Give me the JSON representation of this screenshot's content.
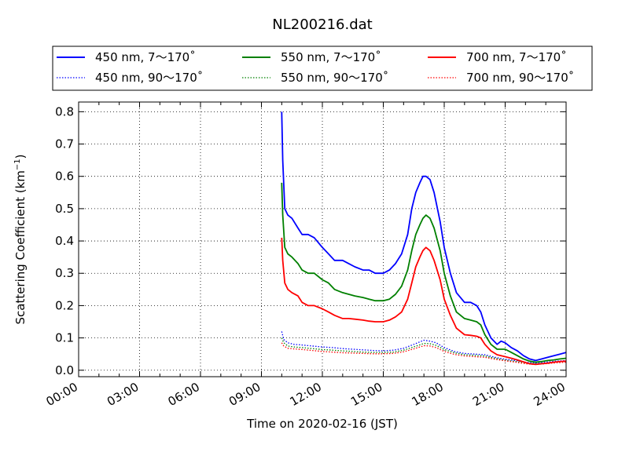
{
  "chart_data": {
    "type": "line",
    "title": "NL200216.dat",
    "xlabel": "Time on 2020-02-16 (JST)",
    "ylabel_main": "Scattering Coefficient (km",
    "ylabel_sup": "−1",
    "ylabel_close": ")",
    "xlim": [
      0,
      24
    ],
    "ylim": [
      -0.02,
      0.83
    ],
    "x_unit": "hours (JST)",
    "grid": true,
    "legend_position": "top (above plot)",
    "x_ticks": [
      {
        "value": 0,
        "label": "00:00"
      },
      {
        "value": 3,
        "label": "03:00"
      },
      {
        "value": 6,
        "label": "06:00"
      },
      {
        "value": 9,
        "label": "09:00"
      },
      {
        "value": 12,
        "label": "12:00"
      },
      {
        "value": 15,
        "label": "15:00"
      },
      {
        "value": 18,
        "label": "18:00"
      },
      {
        "value": 21,
        "label": "21:00"
      },
      {
        "value": 24,
        "label": "24:00"
      }
    ],
    "y_ticks": [
      {
        "value": 0.0,
        "label": "0.0"
      },
      {
        "value": 0.1,
        "label": "0.1"
      },
      {
        "value": 0.2,
        "label": "0.2"
      },
      {
        "value": 0.3,
        "label": "0.3"
      },
      {
        "value": 0.4,
        "label": "0.4"
      },
      {
        "value": 0.5,
        "label": "0.5"
      },
      {
        "value": 0.6,
        "label": "0.6"
      },
      {
        "value": 0.7,
        "label": "0.7"
      },
      {
        "value": 0.8,
        "label": "0.8"
      }
    ],
    "series": [
      {
        "name": "450 nm, 7～170˚",
        "color": "#0000ff",
        "style": "solid",
        "x": [
          10.0,
          10.05,
          10.15,
          10.3,
          10.5,
          10.8,
          11.0,
          11.3,
          11.6,
          12.0,
          12.3,
          12.6,
          13.0,
          13.3,
          13.6,
          14.0,
          14.3,
          14.6,
          15.0,
          15.3,
          15.6,
          15.9,
          16.2,
          16.4,
          16.6,
          16.8,
          16.95,
          17.1,
          17.3,
          17.5,
          17.8,
          18.0,
          18.3,
          18.6,
          19.0,
          19.3,
          19.6,
          19.8,
          20.0,
          20.3,
          20.6,
          20.8,
          21.0,
          21.3,
          21.6,
          21.9,
          22.2,
          22.5,
          22.8,
          23.1,
          23.4,
          23.7,
          24.0
        ],
        "y": [
          0.8,
          0.65,
          0.5,
          0.48,
          0.47,
          0.44,
          0.42,
          0.42,
          0.41,
          0.38,
          0.36,
          0.34,
          0.34,
          0.33,
          0.32,
          0.31,
          0.31,
          0.3,
          0.3,
          0.31,
          0.33,
          0.36,
          0.42,
          0.5,
          0.55,
          0.58,
          0.6,
          0.6,
          0.59,
          0.55,
          0.46,
          0.38,
          0.3,
          0.24,
          0.21,
          0.21,
          0.2,
          0.18,
          0.14,
          0.1,
          0.08,
          0.09,
          0.085,
          0.07,
          0.06,
          0.045,
          0.035,
          0.03,
          0.035,
          0.04,
          0.045,
          0.05,
          0.055
        ]
      },
      {
        "name": "550 nm, 7～170˚",
        "color": "#008000",
        "style": "solid",
        "x": [
          10.0,
          10.05,
          10.15,
          10.3,
          10.5,
          10.8,
          11.0,
          11.3,
          11.6,
          12.0,
          12.3,
          12.6,
          13.0,
          13.3,
          13.6,
          14.0,
          14.3,
          14.6,
          15.0,
          15.3,
          15.6,
          15.9,
          16.2,
          16.4,
          16.6,
          16.8,
          16.95,
          17.1,
          17.3,
          17.5,
          17.8,
          18.0,
          18.3,
          18.6,
          19.0,
          19.3,
          19.6,
          19.8,
          20.0,
          20.3,
          20.6,
          20.8,
          21.0,
          21.3,
          21.6,
          21.9,
          22.2,
          22.5,
          22.8,
          23.1,
          23.4,
          23.7,
          24.0
        ],
        "y": [
          0.58,
          0.48,
          0.38,
          0.36,
          0.35,
          0.33,
          0.31,
          0.3,
          0.3,
          0.28,
          0.27,
          0.25,
          0.24,
          0.235,
          0.23,
          0.225,
          0.22,
          0.215,
          0.215,
          0.22,
          0.235,
          0.26,
          0.31,
          0.37,
          0.42,
          0.45,
          0.47,
          0.48,
          0.47,
          0.44,
          0.37,
          0.3,
          0.23,
          0.18,
          0.16,
          0.155,
          0.15,
          0.14,
          0.11,
          0.08,
          0.065,
          0.065,
          0.065,
          0.055,
          0.045,
          0.035,
          0.028,
          0.025,
          0.027,
          0.03,
          0.032,
          0.035,
          0.037
        ]
      },
      {
        "name": "700 nm, 7～170˚",
        "color": "#ff0000",
        "style": "solid",
        "x": [
          10.0,
          10.05,
          10.15,
          10.3,
          10.5,
          10.8,
          11.0,
          11.3,
          11.6,
          12.0,
          12.3,
          12.6,
          13.0,
          13.3,
          13.6,
          14.0,
          14.3,
          14.6,
          15.0,
          15.3,
          15.6,
          15.9,
          16.2,
          16.4,
          16.6,
          16.8,
          16.95,
          17.1,
          17.3,
          17.5,
          17.8,
          18.0,
          18.3,
          18.6,
          19.0,
          19.3,
          19.6,
          19.8,
          20.0,
          20.3,
          20.6,
          20.8,
          21.0,
          21.3,
          21.6,
          21.9,
          22.2,
          22.5,
          22.8,
          23.1,
          23.4,
          23.7,
          24.0
        ],
        "y": [
          0.41,
          0.34,
          0.27,
          0.25,
          0.24,
          0.23,
          0.21,
          0.2,
          0.2,
          0.19,
          0.18,
          0.17,
          0.16,
          0.16,
          0.158,
          0.155,
          0.152,
          0.15,
          0.15,
          0.155,
          0.165,
          0.18,
          0.22,
          0.27,
          0.32,
          0.35,
          0.37,
          0.38,
          0.37,
          0.34,
          0.28,
          0.22,
          0.17,
          0.13,
          0.11,
          0.108,
          0.105,
          0.1,
          0.08,
          0.06,
          0.048,
          0.045,
          0.042,
          0.037,
          0.032,
          0.026,
          0.02,
          0.018,
          0.02,
          0.022,
          0.025,
          0.027,
          0.028
        ]
      },
      {
        "name": "450 nm, 90～170˚",
        "color": "#0000ff",
        "style": "dotted",
        "x": [
          10.0,
          10.1,
          10.3,
          10.6,
          11.0,
          11.5,
          12.0,
          12.5,
          13.0,
          13.5,
          14.0,
          14.5,
          15.0,
          15.5,
          16.0,
          16.5,
          17.0,
          17.3,
          17.6,
          18.0,
          18.5,
          19.0,
          19.5,
          20.0,
          20.5,
          21.0,
          21.5,
          22.0,
          22.5,
          23.0,
          23.5,
          24.0
        ],
        "y": [
          0.12,
          0.095,
          0.085,
          0.08,
          0.078,
          0.075,
          0.072,
          0.07,
          0.067,
          0.065,
          0.063,
          0.061,
          0.06,
          0.062,
          0.068,
          0.08,
          0.093,
          0.09,
          0.085,
          0.07,
          0.058,
          0.052,
          0.05,
          0.048,
          0.04,
          0.034,
          0.03,
          0.025,
          0.022,
          0.025,
          0.028,
          0.03
        ]
      },
      {
        "name": "550 nm, 90～170˚",
        "color": "#008000",
        "style": "dotted",
        "x": [
          10.0,
          10.1,
          10.3,
          10.6,
          11.0,
          11.5,
          12.0,
          12.5,
          13.0,
          13.5,
          14.0,
          14.5,
          15.0,
          15.5,
          16.0,
          16.5,
          17.0,
          17.3,
          17.6,
          18.0,
          18.5,
          19.0,
          19.5,
          20.0,
          20.5,
          21.0,
          21.5,
          22.0,
          22.5,
          23.0,
          23.5,
          24.0
        ],
        "y": [
          0.1,
          0.085,
          0.075,
          0.072,
          0.07,
          0.067,
          0.064,
          0.062,
          0.06,
          0.058,
          0.056,
          0.055,
          0.055,
          0.056,
          0.062,
          0.072,
          0.083,
          0.082,
          0.077,
          0.064,
          0.054,
          0.048,
          0.046,
          0.044,
          0.037,
          0.031,
          0.027,
          0.022,
          0.02,
          0.022,
          0.025,
          0.027
        ]
      },
      {
        "name": "700 nm, 90～170˚",
        "color": "#ff0000",
        "style": "dotted",
        "x": [
          10.0,
          10.1,
          10.3,
          10.6,
          11.0,
          11.5,
          12.0,
          12.5,
          13.0,
          13.5,
          14.0,
          14.5,
          15.0,
          15.5,
          16.0,
          16.5,
          17.0,
          17.3,
          17.6,
          18.0,
          18.5,
          19.0,
          19.5,
          20.0,
          20.5,
          21.0,
          21.5,
          22.0,
          22.5,
          23.0,
          23.5,
          24.0
        ],
        "y": [
          0.085,
          0.075,
          0.068,
          0.066,
          0.064,
          0.061,
          0.058,
          0.056,
          0.054,
          0.053,
          0.052,
          0.051,
          0.051,
          0.052,
          0.057,
          0.066,
          0.076,
          0.075,
          0.07,
          0.058,
          0.049,
          0.044,
          0.042,
          0.04,
          0.034,
          0.029,
          0.025,
          0.02,
          0.018,
          0.02,
          0.023,
          0.025
        ]
      }
    ]
  }
}
